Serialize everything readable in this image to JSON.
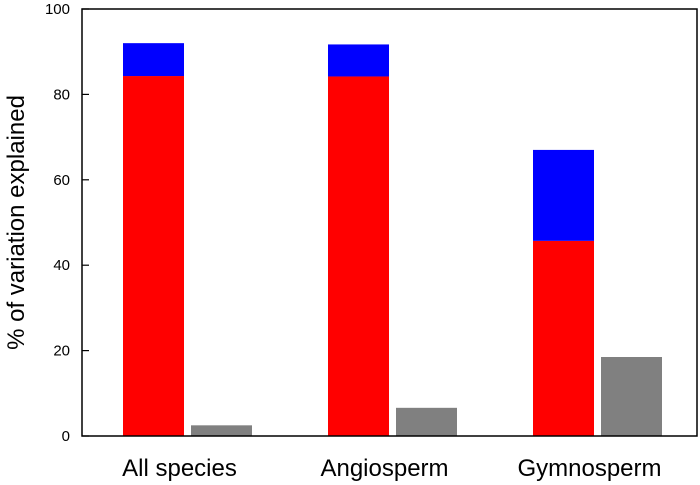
{
  "chart_data": {
    "type": "bar",
    "title": "",
    "xlabel": "",
    "ylabel": "% of variation explained",
    "ylim": [
      0,
      100
    ],
    "yticks": [
      0,
      20,
      40,
      60,
      80,
      100
    ],
    "grid": false,
    "legend": "none",
    "categories": [
      "All species",
      "Angiosperm",
      "Gymnosperm"
    ],
    "series": [
      {
        "name": "red",
        "color": "#ff0000",
        "stack": "main",
        "values": [
          84.3,
          84.2,
          45.7
        ]
      },
      {
        "name": "blue",
        "color": "#0000ff",
        "stack": "main",
        "values": [
          7.7,
          7.5,
          21.3
        ]
      },
      {
        "name": "gray",
        "color": "#808080",
        "stack": "side",
        "values": [
          2.5,
          6.6,
          18.5
        ]
      }
    ]
  }
}
